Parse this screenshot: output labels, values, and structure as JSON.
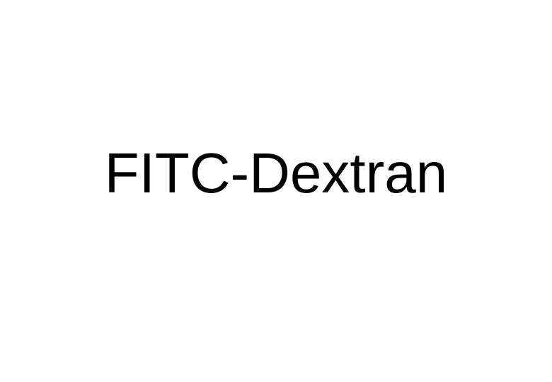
{
  "label": {
    "text": "FITC-Dextran",
    "font_size": 80,
    "font_weight": 400,
    "color": "#000000",
    "font_family": "Arial"
  },
  "background_color": "#ffffff"
}
